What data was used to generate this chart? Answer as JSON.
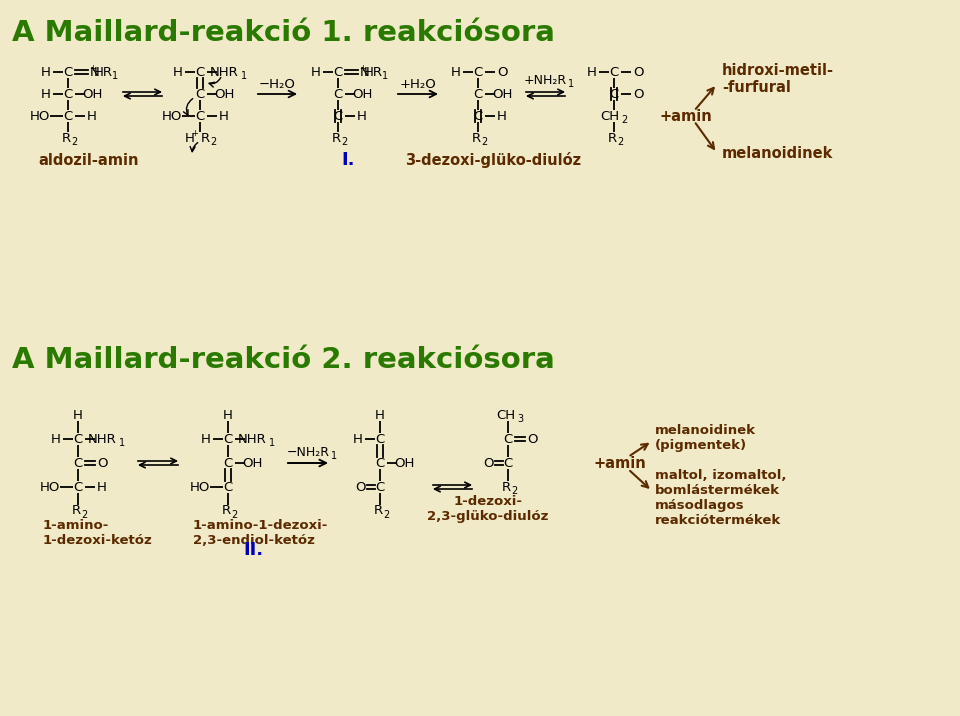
{
  "bg_color": "#F0EAC8",
  "title1": "A Maillard-reakció 1. reakciósora",
  "title2": "A Maillard-reakció 2. reakciósora",
  "title_color": "#2A7A00",
  "chem_color": "#000000",
  "label_color": "#5C2A00",
  "blue_color": "#0000BB",
  "label_aldozil": "aldozil-amin",
  "label_I": "I.",
  "label_3dez": "3-dezoxi-glüko-diulóz",
  "label_hidroxi": "hidroxi-metil-\n-furfural",
  "label_melano1": "melanoidinek",
  "label_amin1": "+amin",
  "label_1amino_ketoz": "1-amino-\n1-dezoxi-ketóz",
  "label_1amino_endiol": "1-amino-1-dezoxi-\n2,3-endiol-ketóz",
  "label_II": "II.",
  "label_1dez": "1-dezoxi-\n2,3-glüko-diulóz",
  "label_melano2a": "melanoidinek\n(pigmentek)",
  "label_melano2b": "maltol, izomaltol,\nbomlástermékek\nmásodlagos\nreakciótermékek",
  "label_amin2": "+amin"
}
